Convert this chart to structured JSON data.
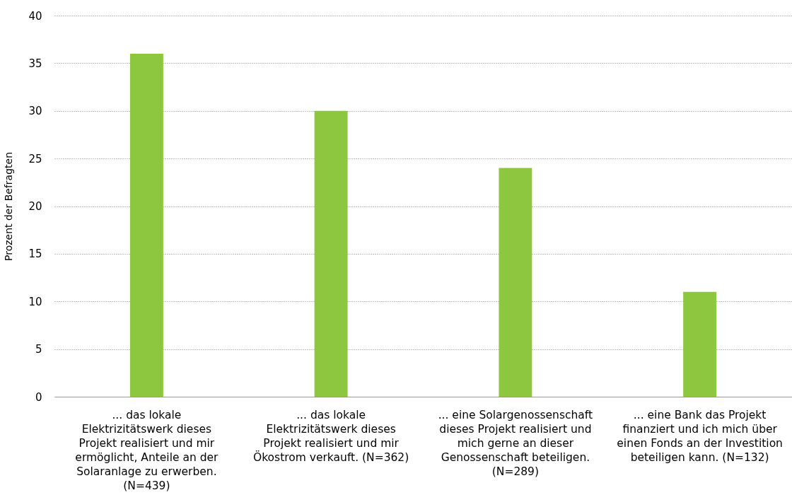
{
  "chart_data": {
    "type": "bar",
    "ylabel": "Prozent der Befragten",
    "categories": [
      "... das lokale Elektrizitätswerk dieses Projekt realisiert und mir ermöglicht, Anteile an der Solaranlage zu erwerben. (N=439)",
      "... das lokale Elektrizitätswerk dieses Projekt realisiert und mir Ökostrom verkauft. (N=362)",
      "... eine Solargenossenschaft dieses Projekt realisiert und mich gerne an dieser Genossenschaft beteiligen. (N=289)",
      "... eine Bank das Projekt finanziert und ich mich über einen Fonds an der Investition beteiligen kann. (N=132)"
    ],
    "values": [
      36,
      30,
      24,
      11
    ],
    "color": "#8dc63f",
    "ylim": [
      0,
      40
    ],
    "yticks": [
      0,
      5,
      10,
      15,
      20,
      25,
      30,
      35,
      40
    ],
    "grid": "y"
  }
}
